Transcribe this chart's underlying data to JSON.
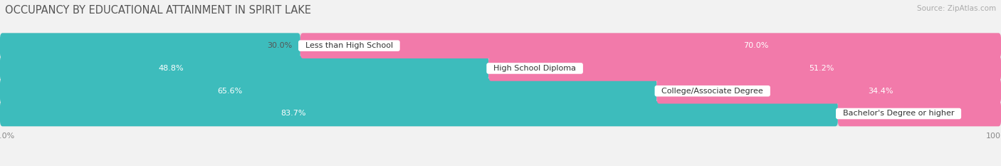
{
  "title": "OCCUPANCY BY EDUCATIONAL ATTAINMENT IN SPIRIT LAKE",
  "source": "Source: ZipAtlas.com",
  "categories": [
    "Less than High School",
    "High School Diploma",
    "College/Associate Degree",
    "Bachelor's Degree or higher"
  ],
  "owner_values": [
    30.0,
    48.8,
    65.6,
    83.7
  ],
  "renter_values": [
    70.0,
    51.2,
    34.4,
    16.3
  ],
  "owner_color": "#3dbcbc",
  "renter_color": "#f27aaa",
  "bg_color": "#f2f2f2",
  "bar_bg_color": "#e2e2e2",
  "bar_height": 0.62,
  "title_fontsize": 10.5,
  "label_fontsize": 8.0,
  "tick_fontsize": 8.0,
  "source_fontsize": 7.5,
  "figsize": [
    14.06,
    2.33
  ],
  "dpi": 100,
  "owner_label_inside_threshold": 40,
  "renter_label_inside_threshold": 30
}
